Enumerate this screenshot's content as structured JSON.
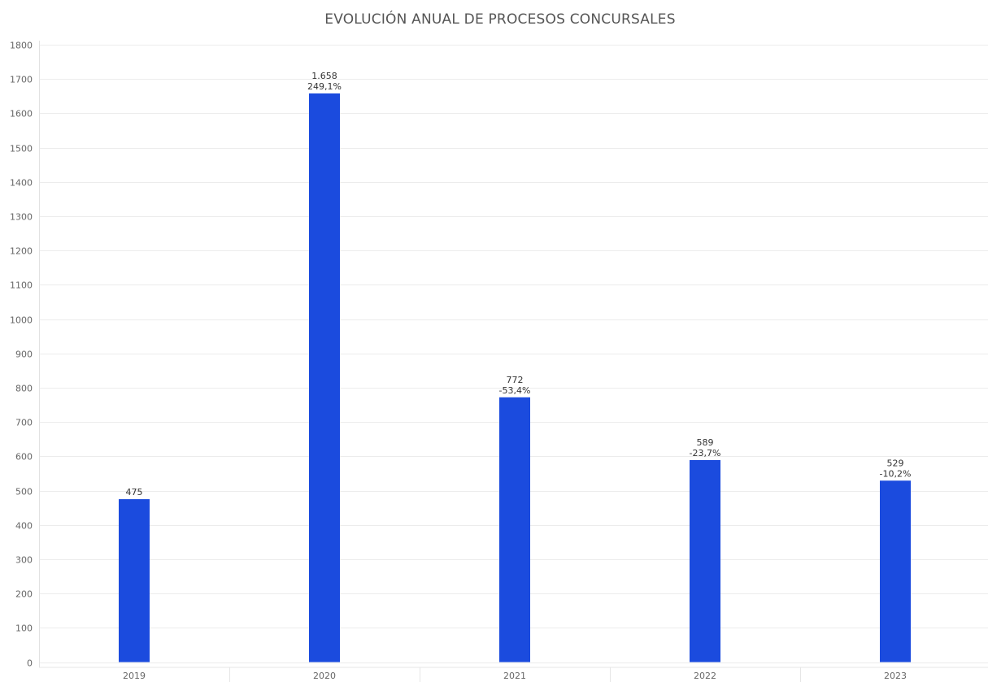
{
  "chart_data": {
    "type": "bar",
    "title": "EVOLUCIÓN ANUAL DE PROCESOS CONCURSALES",
    "xlabel": "",
    "ylabel": "",
    "categories": [
      "2019",
      "2020",
      "2021",
      "2022",
      "2023"
    ],
    "values": [
      475,
      1658,
      772,
      589,
      529
    ],
    "value_labels": [
      "475",
      "1.658",
      "772",
      "589",
      "529"
    ],
    "change_labels": [
      "",
      "249,1%",
      "-53,4%",
      "-23,7%",
      "-10,2%"
    ],
    "ylim": [
      0,
      1800
    ],
    "yticks": [
      0,
      100,
      200,
      300,
      400,
      500,
      600,
      700,
      800,
      900,
      1000,
      1100,
      1200,
      1300,
      1400,
      1500,
      1600,
      1700,
      1800
    ],
    "grid": true,
    "legend": "none",
    "bar_color": "#1B4BDE",
    "grid_color": "#ececec"
  }
}
